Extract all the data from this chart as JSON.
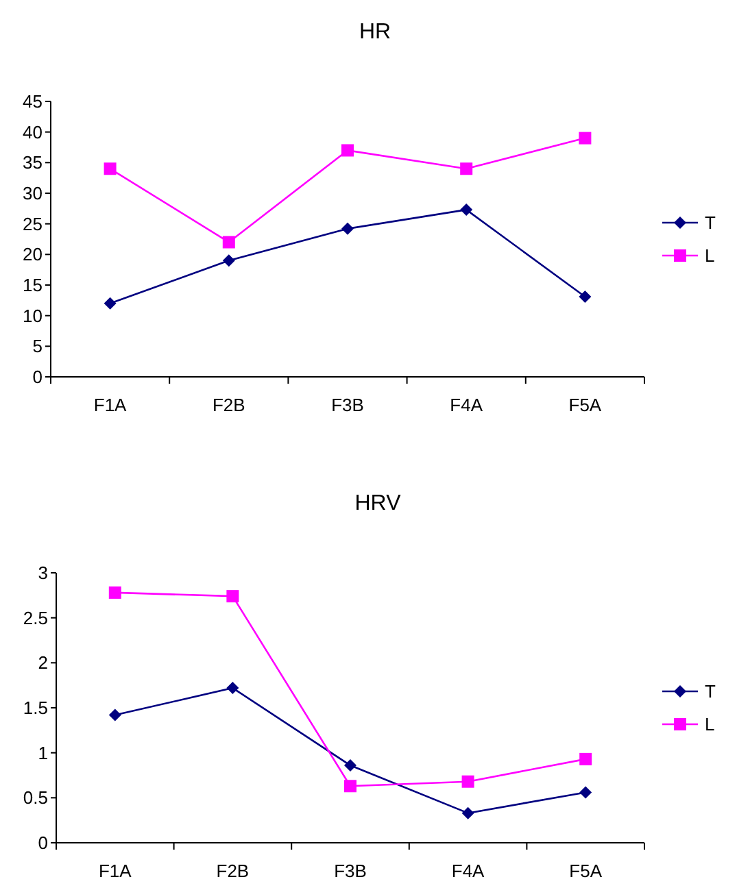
{
  "chart_data": [
    {
      "type": "line",
      "title": "HR",
      "categories": [
        "F1A",
        "F2B",
        "F3B",
        "F4A",
        "F5A"
      ],
      "ylim": [
        0,
        45
      ],
      "yticks": [
        0,
        5,
        10,
        15,
        20,
        25,
        30,
        35,
        40,
        45
      ],
      "grid": false,
      "legend": "right",
      "series": [
        {
          "name": "T",
          "color": "#000080",
          "marker": "diamond",
          "values": [
            12,
            19,
            24.2,
            27.3,
            13.1
          ]
        },
        {
          "name": "L",
          "color": "#ff00ff",
          "marker": "square",
          "values": [
            34,
            22,
            37,
            34,
            39
          ]
        }
      ]
    },
    {
      "type": "line",
      "title": "HRV",
      "categories": [
        "F1A",
        "F2B",
        "F3B",
        "F4A",
        "F5A"
      ],
      "ylim": [
        0,
        3
      ],
      "yticks": [
        0,
        0.5,
        1,
        1.5,
        2,
        2.5,
        3
      ],
      "grid": false,
      "legend": "right",
      "series": [
        {
          "name": "T",
          "color": "#000080",
          "marker": "diamond",
          "values": [
            1.42,
            1.72,
            0.86,
            0.33,
            0.56
          ]
        },
        {
          "name": "L",
          "color": "#ff00ff",
          "marker": "square",
          "values": [
            2.78,
            2.74,
            0.63,
            0.68,
            0.93
          ]
        }
      ]
    }
  ]
}
